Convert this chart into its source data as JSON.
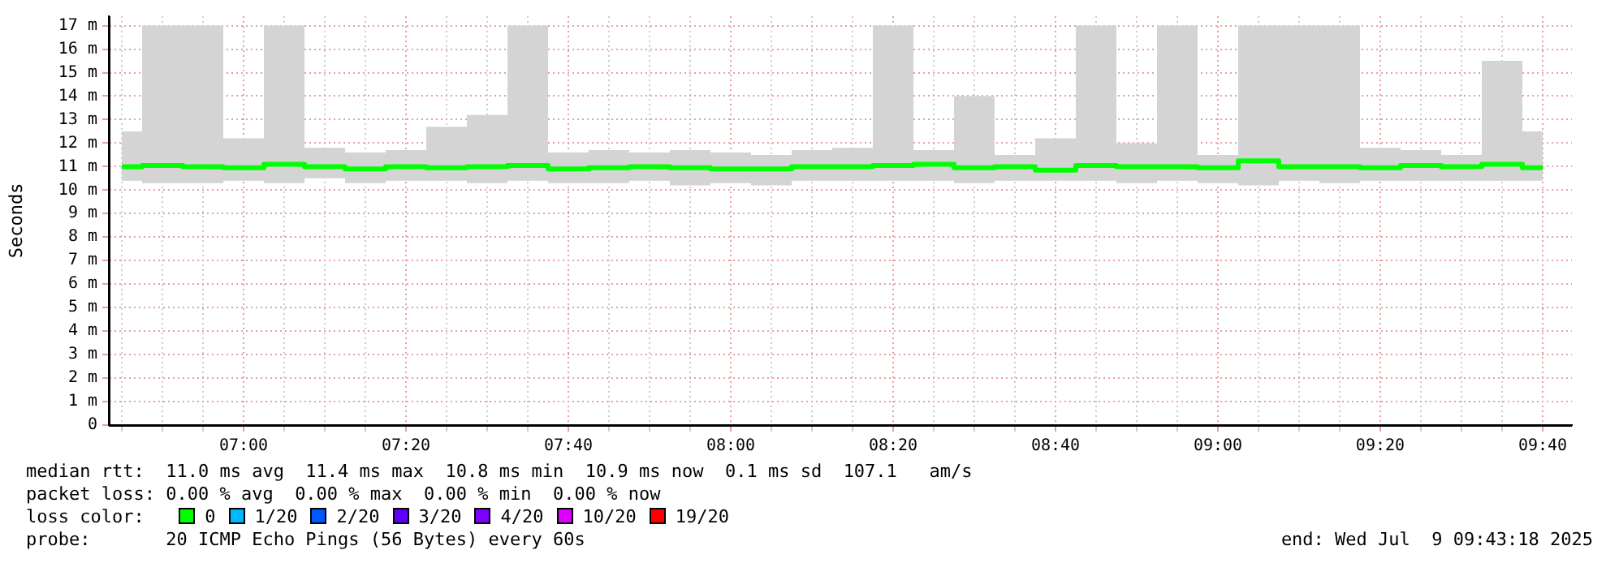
{
  "chart_data": {
    "type": "line",
    "ylabel": "Seconds",
    "xlim": [
      6.7233,
      9.7267
    ],
    "xticks": [
      {
        "value": 6.75,
        "label": null
      },
      {
        "value": 6.8333,
        "label": null
      },
      {
        "value": 6.9167,
        "label": null
      },
      {
        "value": 7,
        "label": "07:00"
      },
      {
        "value": 7.0833,
        "label": null
      },
      {
        "value": 7.1667,
        "label": null
      },
      {
        "value": 7.25,
        "label": null
      },
      {
        "value": 7.3333,
        "label": "07:20"
      },
      {
        "value": 7.4167,
        "label": null
      },
      {
        "value": 7.5,
        "label": null
      },
      {
        "value": 7.5833,
        "label": null
      },
      {
        "value": 7.6667,
        "label": "07:40"
      },
      {
        "value": 7.75,
        "label": null
      },
      {
        "value": 7.8333,
        "label": null
      },
      {
        "value": 7.9167,
        "label": null
      },
      {
        "value": 8,
        "label": "08:00"
      },
      {
        "value": 8.0833,
        "label": null
      },
      {
        "value": 8.1667,
        "label": null
      },
      {
        "value": 8.25,
        "label": null
      },
      {
        "value": 8.3333,
        "label": "08:20"
      },
      {
        "value": 8.4167,
        "label": null
      },
      {
        "value": 8.5,
        "label": null
      },
      {
        "value": 8.5833,
        "label": null
      },
      {
        "value": 8.6667,
        "label": "08:40"
      },
      {
        "value": 8.75,
        "label": null
      },
      {
        "value": 8.8333,
        "label": null
      },
      {
        "value": 8.9167,
        "label": null
      },
      {
        "value": 9,
        "label": "09:00"
      },
      {
        "value": 9.0833,
        "label": null
      },
      {
        "value": 9.1667,
        "label": null
      },
      {
        "value": 9.25,
        "label": null
      },
      {
        "value": 9.3333,
        "label": "09:20"
      },
      {
        "value": 9.4167,
        "label": null
      },
      {
        "value": 9.5,
        "label": null
      },
      {
        "value": 9.5833,
        "label": null
      },
      {
        "value": 9.6667,
        "label": "09:40"
      }
    ],
    "ylim": [
      0,
      17.4
    ],
    "yticks": [
      0,
      {
        "value": 1,
        "label": "1 m"
      },
      {
        "value": 2,
        "label": "2 m"
      },
      {
        "value": 3,
        "label": "3 m"
      },
      {
        "value": 4,
        "label": "4 m"
      },
      {
        "value": 5,
        "label": "5 m"
      },
      {
        "value": 6,
        "label": "6 m"
      },
      {
        "value": 7,
        "label": "7 m"
      },
      {
        "value": 8,
        "label": "8 m"
      },
      {
        "value": 9,
        "label": "9 m"
      },
      {
        "value": 10,
        "label": "10 m"
      },
      {
        "value": 11,
        "label": "11 m"
      },
      {
        "value": 12,
        "label": "12 m"
      },
      {
        "value": 13,
        "label": "13 m"
      },
      {
        "value": 14,
        "label": "14 m"
      },
      {
        "value": 15,
        "label": "15 m"
      },
      {
        "value": 16,
        "label": "16 m"
      },
      {
        "value": 17,
        "label": "17 m"
      }
    ],
    "x": [
      6.75,
      6.8333,
      6.9167,
      7,
      7.0833,
      7.1667,
      7.25,
      7.3333,
      7.4167,
      7.5,
      7.5833,
      7.6667,
      7.75,
      7.8333,
      7.9167,
      8,
      8.0833,
      8.1667,
      8.25,
      8.3333,
      8.4167,
      8.5,
      8.5833,
      8.6667,
      8.75,
      8.8333,
      8.9167,
      9,
      9.0833,
      9.1667,
      9.25,
      9.3333,
      9.4167,
      9.5,
      9.5833,
      9.6667
    ],
    "series": [
      {
        "name": "0",
        "color": "#00ff00",
        "values": [
          11.0,
          11.05,
          11.0,
          10.95,
          11.1,
          11.0,
          10.9,
          11.0,
          10.95,
          11.0,
          11.05,
          10.9,
          10.95,
          11.0,
          10.95,
          10.9,
          10.9,
          11.0,
          11.0,
          11.05,
          11.1,
          10.95,
          11.0,
          10.85,
          11.05,
          11.0,
          11.0,
          10.95,
          11.25,
          11.0,
          11.0,
          10.95,
          11.05,
          11.0,
          11.1,
          10.95
        ],
        "lower": [
          10.4,
          10.3,
          10.3,
          10.4,
          10.3,
          10.5,
          10.3,
          10.4,
          10.4,
          10.3,
          10.4,
          10.3,
          10.3,
          10.4,
          10.2,
          10.3,
          10.2,
          10.4,
          10.4,
          10.4,
          10.4,
          10.3,
          10.4,
          10.4,
          10.4,
          10.3,
          10.4,
          10.3,
          10.2,
          10.4,
          10.3,
          10.4,
          10.4,
          10.4,
          10.4,
          10.4
        ],
        "upper": [
          12.5,
          17,
          17,
          12.2,
          17,
          11.8,
          11.6,
          11.7,
          12.7,
          13.2,
          17,
          11.6,
          11.7,
          11.6,
          11.7,
          11.6,
          11.5,
          11.7,
          11.8,
          17,
          11.7,
          14,
          11.5,
          12.2,
          17,
          12,
          17,
          11.5,
          17,
          17,
          17,
          11.8,
          11.7,
          11.5,
          15.5,
          12.5
        ]
      },
      {
        "name": "1/20",
        "color": "#00b8ff",
        "values": [
          null,
          null,
          null,
          null,
          null,
          null,
          null,
          null,
          null,
          null,
          null,
          null,
          null,
          null,
          null,
          null,
          null,
          null,
          null,
          null,
          null,
          null,
          null,
          null,
          null,
          null,
          null,
          null,
          null,
          null,
          null,
          null,
          null,
          null,
          null,
          null
        ]
      },
      {
        "name": "2/20",
        "color": "#0059ff",
        "values": [
          null,
          null,
          null,
          null,
          null,
          null,
          null,
          null,
          null,
          null,
          null,
          null,
          null,
          null,
          null,
          null,
          null,
          null,
          null,
          null,
          null,
          null,
          null,
          null,
          null,
          null,
          null,
          null,
          null,
          null,
          null,
          null,
          null,
          null,
          null,
          null
        ]
      },
      {
        "name": "3/20",
        "color": "#5e00ff",
        "values": [
          null,
          null,
          null,
          null,
          null,
          null,
          null,
          null,
          null,
          null,
          null,
          null,
          null,
          null,
          null,
          null,
          null,
          null,
          null,
          null,
          null,
          null,
          null,
          null,
          null,
          null,
          null,
          null,
          null,
          null,
          null,
          null,
          null,
          null,
          null,
          null
        ]
      },
      {
        "name": "4/20",
        "color": "#7e00ff",
        "values": [
          null,
          null,
          null,
          null,
          null,
          null,
          null,
          null,
          null,
          null,
          null,
          null,
          null,
          null,
          null,
          null,
          null,
          null,
          null,
          null,
          null,
          null,
          null,
          null,
          null,
          null,
          null,
          null,
          null,
          null,
          null,
          null,
          null,
          null,
          null,
          null
        ]
      },
      {
        "name": "10/20",
        "color": "#dd00ff",
        "values": [
          null,
          null,
          null,
          null,
          null,
          null,
          null,
          null,
          null,
          null,
          null,
          null,
          null,
          null,
          null,
          null,
          null,
          null,
          null,
          null,
          null,
          null,
          null,
          null,
          null,
          null,
          null,
          null,
          null,
          null,
          null,
          null,
          null,
          null,
          null,
          null
        ]
      },
      {
        "name": "19/20",
        "color": "#ff0000",
        "values": [
          null,
          null,
          null,
          null,
          null,
          null,
          null,
          null,
          null,
          null,
          null,
          null,
          null,
          null,
          null,
          null,
          null,
          null,
          null,
          null,
          null,
          null,
          null,
          null,
          null,
          null,
          null,
          null,
          null,
          null,
          null,
          null,
          null,
          null,
          null,
          null
        ]
      }
    ],
    "legend": "bottom",
    "legend_title": "loss color:",
    "grid": true,
    "annotations": [
      "median rtt:  11.0 ms avg  11.4 ms max  10.8 ms min  10.9 ms now  0.1 ms sd  107.1   am/s",
      "packet loss: 0.00 % avg  0.00 % max  0.00 % min  0.00 % now",
      "probe:       20 ICMP Echo Pings (56 Bytes) every 60s",
      "end: Wed Jul  9 09:43:18 2025"
    ]
  }
}
